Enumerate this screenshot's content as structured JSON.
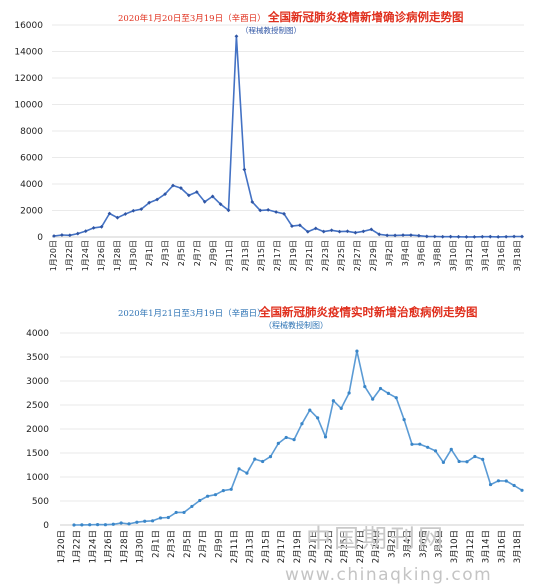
{
  "chart_data": [
    {
      "type": "line",
      "title_prefix": "2020年1月20日至3月19日（辛酉日）",
      "title": "全国新冠肺炎疫情新增确诊病例走势图",
      "subtitle": "（程械教授制图）",
      "ylim": [
        0,
        16000
      ],
      "yticks": [
        "0",
        "2000",
        "4000",
        "6000",
        "8000",
        "10000",
        "12000",
        "14000",
        "16000"
      ],
      "xtick_labels": [
        "1月20日",
        "1月22日",
        "1月24日",
        "1月26日",
        "1月28日",
        "1月30日",
        "2月1日",
        "2月3日",
        "2月5日",
        "2月7日",
        "2月9日",
        "2月11日",
        "2月13日",
        "2月15日",
        "2月17日",
        "2月19日",
        "2月21日",
        "2月23日",
        "2月25日",
        "2月27日",
        "2月29日",
        "3月2日",
        "3月4日",
        "3月6日",
        "3月8日",
        "3月10日",
        "3月12日",
        "3月14日",
        "3月16日",
        "3月18日"
      ],
      "color": "#4472c4",
      "values": [
        77,
        149,
        131,
        259,
        444,
        688,
        769,
        1771,
        1459,
        1737,
        1981,
        2102,
        2590,
        2829,
        3235,
        3887,
        3694,
        3143,
        3399,
        2656,
        3062,
        2478,
        2015,
        15152,
        5090,
        2641,
        2009,
        2048,
        1886,
        1749,
        820,
        889,
        397,
        650,
        409,
        508,
        406,
        433,
        327,
        427,
        573,
        202,
        125,
        119,
        139,
        143,
        99,
        44,
        40,
        19,
        24,
        15,
        8,
        11,
        20,
        25,
        11,
        21,
        39,
        34
      ]
    },
    {
      "type": "line",
      "title_prefix": "2020年1月21日至3月19日（辛酉日）",
      "title": "全国新冠肺炎疫情实时新增治愈病例走势图",
      "subtitle": "（程械教授制图）",
      "ylim": [
        0,
        4000
      ],
      "yticks": [
        "0",
        "500",
        "1000",
        "1500",
        "2000",
        "2500",
        "3000",
        "3500",
        "4000"
      ],
      "xtick_labels": [
        "1月20日",
        "1月22日",
        "1月24日",
        "1月26日",
        "1月28日",
        "1月30日",
        "2月1日",
        "2月3日",
        "2月5日",
        "2月7日",
        "2月9日",
        "2月11日",
        "2月13日",
        "2月15日",
        "2月17日",
        "2月19日",
        "2月21日",
        "2月23日",
        "2月25日",
        "2月27日",
        "2月29日",
        "3月2日",
        "3月4日",
        "3月6日",
        "3月8日",
        "3月10日",
        "3月12日",
        "3月14日",
        "3月16日",
        "3月18日"
      ],
      "color": "#5b9bd5",
      "values": [
        0,
        3,
        5,
        8,
        6,
        15,
        41,
        23,
        58,
        78,
        87,
        147,
        157,
        262,
        262,
        387,
        510,
        600,
        632,
        716,
        744,
        1171,
        1081,
        1373,
        1323,
        1425,
        1701,
        1824,
        1779,
        2109,
        2393,
        2231,
        1836,
        2589,
        2430,
        2750,
        3622,
        2884,
        2623,
        2843,
        2742,
        2652,
        2196,
        1681,
        1684,
        1619,
        1544,
        1304,
        1575,
        1324,
        1318,
        1427,
        1367,
        842,
        921,
        916,
        823,
        723
      ]
    }
  ],
  "watermark": {
    "cn": "中国期刊网",
    "url": "www.chinaqking.com"
  }
}
